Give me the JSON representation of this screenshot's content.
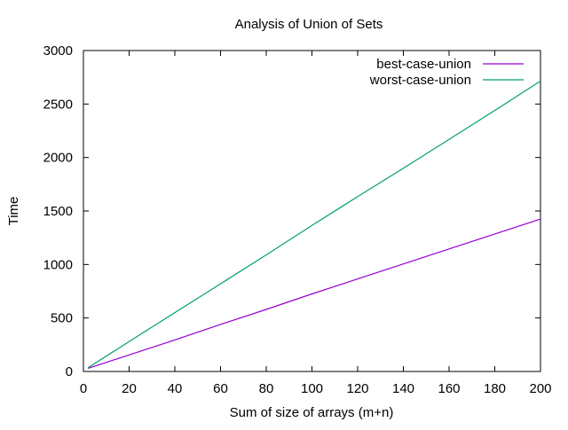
{
  "chart_data": {
    "type": "line",
    "title": "Analysis of Union of Sets",
    "xlabel": "Sum of size of arrays (m+n)",
    "ylabel": "Time",
    "xlim": [
      0,
      200
    ],
    "ylim": [
      0,
      3000
    ],
    "xticks": [
      0,
      20,
      40,
      60,
      80,
      100,
      120,
      140,
      160,
      180,
      200
    ],
    "yticks": [
      0,
      500,
      1000,
      1500,
      2000,
      2500,
      3000
    ],
    "grid": false,
    "legend_position": "top-right",
    "series": [
      {
        "name": "best-case-union",
        "color": "#9400d3",
        "x": [
          2,
          20,
          40,
          60,
          80,
          100,
          120,
          140,
          160,
          180,
          200
        ],
        "y": [
          30,
          155,
          295,
          440,
          580,
          725,
          865,
          1005,
          1145,
          1285,
          1425
        ]
      },
      {
        "name": "worst-case-union",
        "color": "#009e73",
        "x": [
          2,
          20,
          40,
          60,
          80,
          100,
          120,
          140,
          160,
          180,
          200
        ],
        "y": [
          35,
          280,
          550,
          820,
          1090,
          1365,
          1635,
          1900,
          2170,
          2440,
          2715
        ]
      }
    ]
  }
}
